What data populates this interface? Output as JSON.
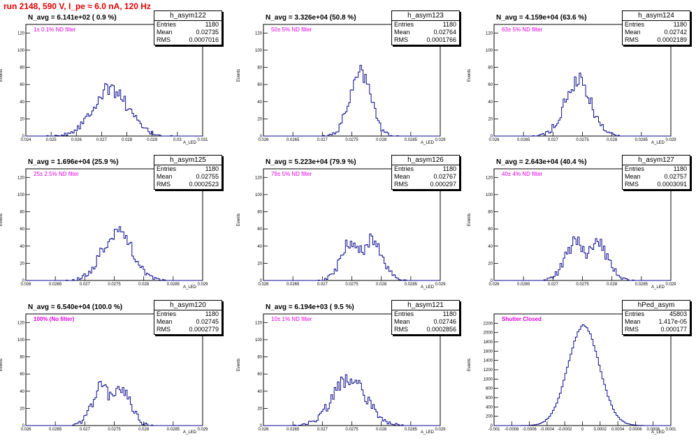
{
  "header": {
    "title": "run 2148,   590 V, I_pe ≈ 6.0 nA, 120 Hz"
  },
  "axis_labels": {
    "y": "Events",
    "x": "A_LED"
  },
  "stat_labels": {
    "entries": "Entries",
    "mean": "Mean",
    "rms": "RMS"
  },
  "colors": {
    "histogram": "#0a0a8c",
    "title": "#e00000",
    "filter_label": "#e000e0"
  },
  "chart_data": [
    {
      "type": "bar",
      "name": "h_asym122",
      "navg": "N_avg = 6.141e+02 ( 0.9 %)",
      "filter": "1± 0.1% ND filter",
      "stats": {
        "entries": "1180",
        "mean": "0.02735",
        "rms": "0.0007016"
      },
      "xlim": [
        0.024,
        0.031
      ],
      "ylim": [
        0,
        130
      ],
      "xticks": [
        {
          "v": 0.024,
          "label": "0.024"
        },
        {
          "v": 0.025,
          "label": "0.025"
        },
        {
          "v": 0.026,
          "label": "0.026"
        },
        {
          "v": 0.027,
          "label": "0.027"
        },
        {
          "v": 0.028,
          "label": "0.028"
        },
        {
          "v": 0.029,
          "label": "0.029"
        },
        {
          "v": 0.03,
          "label": "0.03"
        },
        {
          "v": 0.031,
          "label": "0.031"
        }
      ],
      "yticks": [
        0,
        20,
        40,
        60,
        80,
        100,
        120
      ],
      "mean": 0.02735,
      "sigma": 0.0007016,
      "peak": 55
    },
    {
      "type": "bar",
      "name": "h_asym123",
      "navg": "N_avg = 3.326e+04 (50.8 %)",
      "filter": "50± 5% ND filter",
      "stats": {
        "entries": "1180",
        "mean": "0.02764",
        "rms": "0.0001766"
      },
      "xlim": [
        0.026,
        0.029
      ],
      "ylim": [
        0,
        130
      ],
      "xticks": [
        {
          "v": 0.026,
          "label": "0.026"
        },
        {
          "v": 0.0265,
          "label": "0.0265"
        },
        {
          "v": 0.027,
          "label": "0.027"
        },
        {
          "v": 0.0275,
          "label": "0.0275"
        },
        {
          "v": 0.028,
          "label": "0.028"
        },
        {
          "v": 0.0285,
          "label": "0.0285"
        },
        {
          "v": 0.029,
          "label": "0.029"
        }
      ],
      "yticks": [
        0,
        20,
        40,
        60,
        80,
        100,
        120
      ],
      "mean": 0.02764,
      "sigma": 0.0001766,
      "peak": 77
    },
    {
      "type": "bar",
      "name": "h_asym124",
      "navg": "N_avg = 4.159e+04 (63.6 %)",
      "filter": "63± 5% ND filter",
      "stats": {
        "entries": "1180",
        "mean": "0.02742",
        "rms": "0.0002189"
      },
      "xlim": [
        0.026,
        0.029
      ],
      "ylim": [
        0,
        130
      ],
      "xticks": [
        {
          "v": 0.026,
          "label": "0.026"
        },
        {
          "v": 0.0265,
          "label": "0.0265"
        },
        {
          "v": 0.027,
          "label": "0.027"
        },
        {
          "v": 0.0275,
          "label": "0.0275"
        },
        {
          "v": 0.028,
          "label": "0.028"
        },
        {
          "v": 0.0285,
          "label": "0.0285"
        },
        {
          "v": 0.029,
          "label": "0.029"
        }
      ],
      "yticks": [
        0,
        20,
        40,
        60,
        80,
        100,
        120
      ],
      "mean": 0.02742,
      "sigma": 0.0002189,
      "peak": 65
    },
    {
      "type": "bar",
      "name": "h_asym125",
      "navg": "N_avg = 1.696e+04 (25.9 %)",
      "filter": "25± 2.5% ND filter",
      "stats": {
        "entries": "1180",
        "mean": "0.02755",
        "rms": "0.0002523"
      },
      "xlim": [
        0.026,
        0.029
      ],
      "ylim": [
        0,
        130
      ],
      "xticks": [
        {
          "v": 0.026,
          "label": "0.026"
        },
        {
          "v": 0.0265,
          "label": "0.0265"
        },
        {
          "v": 0.027,
          "label": "0.027"
        },
        {
          "v": 0.0275,
          "label": "0.0275"
        },
        {
          "v": 0.028,
          "label": "0.028"
        },
        {
          "v": 0.0285,
          "label": "0.0285"
        },
        {
          "v": 0.029,
          "label": "0.029"
        }
      ],
      "yticks": [
        0,
        20,
        40,
        60,
        80,
        100,
        120
      ],
      "mean": 0.02755,
      "sigma": 0.0002523,
      "peak": 58
    },
    {
      "type": "bar",
      "name": "h_asym126",
      "navg": "N_avg = 5.223e+04 (79.9 %)",
      "filter": "79± 5% ND filter",
      "stats": {
        "entries": "1180",
        "mean": "0.02767",
        "rms": "0.000297"
      },
      "xlim": [
        0.026,
        0.029
      ],
      "ylim": [
        0,
        130
      ],
      "xticks": [
        {
          "v": 0.026,
          "label": "0.026"
        },
        {
          "v": 0.0265,
          "label": "0.0265"
        },
        {
          "v": 0.027,
          "label": "0.027"
        },
        {
          "v": 0.0275,
          "label": "0.0275"
        },
        {
          "v": 0.028,
          "label": "0.028"
        },
        {
          "v": 0.0285,
          "label": "0.0285"
        },
        {
          "v": 0.029,
          "label": "0.029"
        }
      ],
      "yticks": [
        0,
        20,
        40,
        60,
        80,
        100,
        120
      ],
      "mean": 0.02767,
      "sigma": 0.000297,
      "peak": 48,
      "bimodal": true
    },
    {
      "type": "bar",
      "name": "h_asym127",
      "navg": "N_avg = 2.643e+04 (40.4 %)",
      "filter": "40± 4% ND filter",
      "stats": {
        "entries": "1180",
        "mean": "0.02757",
        "rms": "0.0003091"
      },
      "xlim": [
        0.026,
        0.029
      ],
      "ylim": [
        0,
        130
      ],
      "xticks": [
        {
          "v": 0.026,
          "label": "0.026"
        },
        {
          "v": 0.0265,
          "label": "0.0265"
        },
        {
          "v": 0.027,
          "label": "0.027"
        },
        {
          "v": 0.0275,
          "label": "0.0275"
        },
        {
          "v": 0.028,
          "label": "0.028"
        },
        {
          "v": 0.0285,
          "label": "0.0285"
        },
        {
          "v": 0.029,
          "label": "0.029"
        }
      ],
      "yticks": [
        0,
        20,
        40,
        60,
        80,
        100,
        120
      ],
      "mean": 0.02757,
      "sigma": 0.0003091,
      "peak": 46,
      "bimodal": true
    },
    {
      "type": "bar",
      "name": "h_asym120",
      "navg": "N_avg = 6.540e+04 (100.0 %)",
      "filter": "100% (No filter)",
      "stats": {
        "entries": "1180",
        "mean": "0.02745",
        "rms": "0.0002779"
      },
      "xlim": [
        0.026,
        0.029
      ],
      "ylim": [
        0,
        130
      ],
      "xticks": [
        {
          "v": 0.026,
          "label": "0.026"
        },
        {
          "v": 0.0265,
          "label": "0.0265"
        },
        {
          "v": 0.027,
          "label": "0.027"
        },
        {
          "v": 0.0275,
          "label": "0.0275"
        },
        {
          "v": 0.028,
          "label": "0.028"
        },
        {
          "v": 0.0285,
          "label": "0.0285"
        },
        {
          "v": 0.029,
          "label": "0.029"
        }
      ],
      "yticks": [
        0,
        20,
        40,
        60,
        80,
        100,
        120
      ],
      "mean": 0.02745,
      "sigma": 0.0002779,
      "peak": 47,
      "bimodal": true
    },
    {
      "type": "bar",
      "name": "h_asym121",
      "navg": "N_avg = 6.194e+03 ( 9.5 %)",
      "filter": "10± 1% ND filter",
      "stats": {
        "entries": "1180",
        "mean": "0.02746",
        "rms": "0.0002856"
      },
      "xlim": [
        0.026,
        0.029
      ],
      "ylim": [
        0,
        130
      ],
      "xticks": [
        {
          "v": 0.026,
          "label": "0.026"
        },
        {
          "v": 0.0265,
          "label": "0.0265"
        },
        {
          "v": 0.027,
          "label": "0.027"
        },
        {
          "v": 0.0275,
          "label": "0.0275"
        },
        {
          "v": 0.028,
          "label": "0.028"
        },
        {
          "v": 0.0285,
          "label": "0.0285"
        },
        {
          "v": 0.029,
          "label": "0.029"
        }
      ],
      "yticks": [
        0,
        20,
        40,
        60,
        80,
        100,
        120
      ],
      "mean": 0.02746,
      "sigma": 0.0002856,
      "peak": 55
    },
    {
      "type": "bar",
      "name": "hPed_asym",
      "navg": "",
      "filter": "Shutter Closed",
      "stats": {
        "entries": "45803",
        "mean": "1.417e-05",
        "rms": "0.000177"
      },
      "xlim": [
        -0.001,
        0.001
      ],
      "ylim": [
        0,
        2400
      ],
      "xticks": [
        {
          "v": -0.001,
          "label": "-0.001"
        },
        {
          "v": -0.0008,
          "label": "-0.0008"
        },
        {
          "v": -0.0006,
          "label": "-0.0006"
        },
        {
          "v": -0.0004,
          "label": "-0.0004"
        },
        {
          "v": -0.0002,
          "label": "-0.0002"
        },
        {
          "v": 0,
          "label": "0"
        },
        {
          "v": 0.0002,
          "label": "0.0002"
        },
        {
          "v": 0.0004,
          "label": "0.0004"
        },
        {
          "v": 0.0006,
          "label": "0.0006"
        },
        {
          "v": 0.0008,
          "label": "0.0008"
        },
        {
          "v": 0.001,
          "label": "0.001"
        }
      ],
      "yticks": [
        0,
        200,
        400,
        600,
        800,
        1000,
        1200,
        1400,
        1600,
        1800,
        2000,
        2200
      ],
      "mean": 1.417e-05,
      "sigma": 0.000177,
      "peak": 2150,
      "smooth": true
    }
  ]
}
